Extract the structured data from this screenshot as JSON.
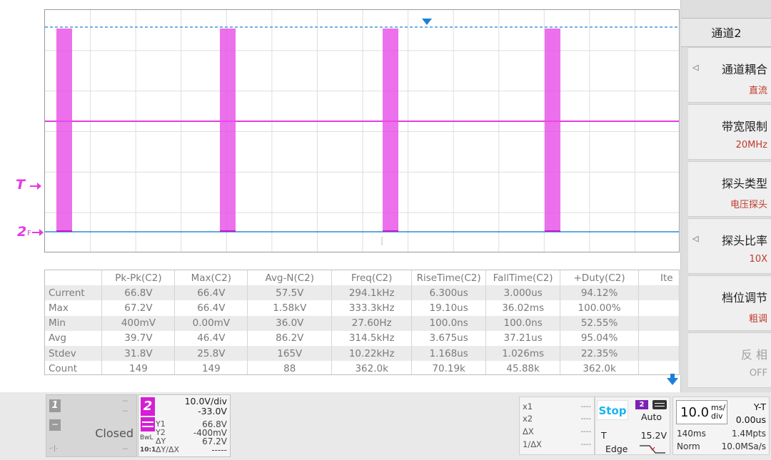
{
  "screen": {
    "trigger_marker": "T",
    "channel_marker": "2",
    "channel_marker_sub": "F"
  },
  "menu": {
    "title": "通道2",
    "items": [
      {
        "label": "通道耦合",
        "value": "直流",
        "has_arrow": true,
        "enabled": true
      },
      {
        "label": "带宽限制",
        "value": "20MHz",
        "has_arrow": false,
        "enabled": true
      },
      {
        "label": "探头类型",
        "value": "电压探头",
        "has_arrow": false,
        "enabled": true
      },
      {
        "label": "探头比率",
        "value": "10X",
        "has_arrow": true,
        "enabled": true
      },
      {
        "label": "档位调节",
        "value": "粗调",
        "has_arrow": false,
        "enabled": true
      },
      {
        "label": "反 相",
        "value": "OFF",
        "has_arrow": false,
        "enabled": false
      }
    ]
  },
  "measurements": {
    "headers": [
      "",
      "Pk-Pk(C2)",
      "Max(C2)",
      "Avg-N(C2)",
      "Freq(C2)",
      "RiseTime(C2)",
      "FallTime(C2)",
      "+Duty(C2)",
      "Ite"
    ],
    "rows": [
      [
        "Current",
        "66.8V",
        "66.4V",
        "57.5V",
        "294.1kHz",
        "6.300us",
        "3.000us",
        "94.12%",
        ""
      ],
      [
        "Max",
        "67.2V",
        "66.4V",
        "1.58kV",
        "333.3kHz",
        "19.10us",
        "36.02ms",
        "100.00%",
        ""
      ],
      [
        "Min",
        "400mV",
        "0.00mV",
        "36.0V",
        "27.60Hz",
        "100.0ns",
        "100.0ns",
        "52.55%",
        ""
      ],
      [
        "Avg",
        "39.7V",
        "46.4V",
        "86.2V",
        "314.5kHz",
        "3.675us",
        "37.21us",
        "95.04%",
        ""
      ],
      [
        "Stdev",
        "31.8V",
        "25.8V",
        "165V",
        "10.22kHz",
        "1.168us",
        "1.026ms",
        "22.35%",
        ""
      ],
      [
        "Count",
        "149",
        "149",
        "88",
        "362.0k",
        "70.19k",
        "45.88k",
        "362.0k",
        ""
      ]
    ]
  },
  "status": {
    "ch1": {
      "number": "1",
      "secondary": "−",
      "dash1": "--",
      "dash2": "--",
      "dash3": "--",
      "state": "Closed",
      "dots": "-·|-"
    },
    "ch2": {
      "number": "2",
      "scale": "10.0V/div",
      "offset": "-33.0V",
      "bw": "BwL",
      "ratio": "10:1",
      "cursor_labels": [
        "Y1",
        "Y2",
        "ΔY",
        "ΔY/ΔX"
      ],
      "cursor_values": [
        "66.8V",
        "-400mV",
        "67.2V",
        "-----"
      ]
    },
    "cursors": {
      "labels": [
        "x1",
        "x2",
        "ΔX",
        "1/ΔX"
      ],
      "values": [
        "----",
        "----",
        "----",
        "----"
      ]
    },
    "trigger": {
      "run_state": "Stop",
      "source": "2",
      "mode": "Auto",
      "level_label": "T",
      "level": "15.2V",
      "type": "Edge"
    },
    "timebase": {
      "value": "10.0",
      "unit_top": "ms/",
      "unit_bottom": "div",
      "mode": "Y-T",
      "delay": "0.00us",
      "window": "140ms",
      "memory": "1.4Mpts",
      "acq": "Norm",
      "rate": "10.0MSa/s"
    }
  },
  "colors": {
    "ch2": "#e43be4",
    "trigger_line": "#1e7fd8",
    "ground_line": "#2a8ad8",
    "accent_value": "#c0392b",
    "stop": "#16b4f0"
  }
}
